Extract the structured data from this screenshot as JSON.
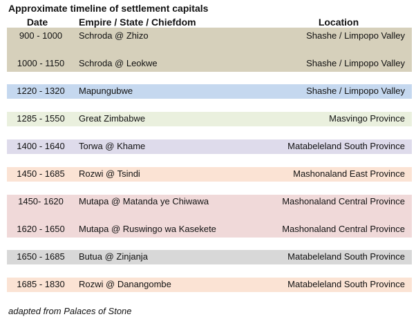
{
  "title": "Approximate timeline of settlement capitals",
  "headers": {
    "date": "Date",
    "empire": "Empire / State / Chiefdom",
    "location": "Location"
  },
  "colors": {
    "band_shashe": "#d6d0bb",
    "band_mapungubwe": "#c5d8ef",
    "band_zimbabwe": "#eaf0de",
    "band_torwa": "#dedbeb",
    "band_rozwi": "#fbe3d4",
    "band_mutapa": "#f0d9d9",
    "band_butua": "#d8d8d8"
  },
  "rows": [
    {
      "date": "900 - 1000",
      "empire": "Schroda @ Zhizo",
      "location": "Shashe / Limpopo Valley"
    },
    {
      "date": "1000 - 1150",
      "empire": "Schroda @ Leokwe",
      "location": "Shashe / Limpopo Valley"
    },
    {
      "date": "1220 - 1320",
      "empire": "Mapungubwe",
      "location": "Shashe / Limpopo Valley"
    },
    {
      "date": "1285 - 1550",
      "empire": "Great Zimbabwe",
      "location": "Masvingo Province"
    },
    {
      "date": "1400 - 1640",
      "empire": "Torwa @ Khame",
      "location": "Matabeleland South Province"
    },
    {
      "date": "1450 - 1685",
      "empire": "Rozwi @ Tsindi",
      "location": "Mashonaland East Province"
    },
    {
      "date": "1450- 1620",
      "empire": "Mutapa @ Matanda ye Chiwawa",
      "location": "Mashonaland Central Province"
    },
    {
      "date": "1620 - 1650",
      "empire": "Mutapa @ Ruswingo wa Kasekete",
      "location": "Mashonaland Central Province"
    },
    {
      "date": "1650 - 1685",
      "empire": "Butua @ Zinjanja",
      "location": "Matabeleland South Province"
    },
    {
      "date": "1685 - 1830",
      "empire": "Rozwi @ Danangombe",
      "location": "Matabeleland South Province"
    }
  ],
  "footer": "adapted from Palaces of Stone"
}
